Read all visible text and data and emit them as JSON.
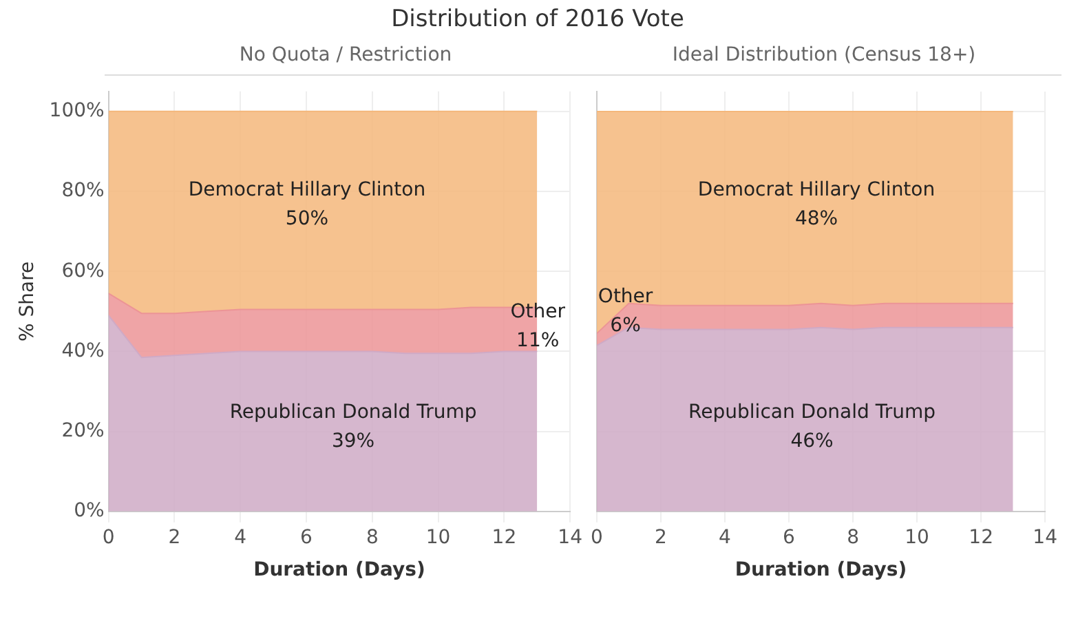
{
  "chart_data": [
    {
      "type": "area",
      "title": "Distribution of 2016 Vote",
      "subtitle": "No Quota / Restriction",
      "xlabel": "Duration (Days)",
      "ylabel": "% Share",
      "stacked": true,
      "x": [
        0,
        1,
        2,
        3,
        4,
        5,
        6,
        7,
        8,
        9,
        10,
        11,
        12,
        13
      ],
      "series": [
        {
          "color": "#cfaac6",
          "values": [
            49,
            38.5,
            39,
            39.5,
            40,
            40,
            40,
            40,
            40,
            39.5,
            39.5,
            39.5,
            40,
            40
          ]
        },
        {
          "color": "#ec9496",
          "values": [
            5.5,
            11,
            10.5,
            10.5,
            10.5,
            10.5,
            10.5,
            10.5,
            10.5,
            11,
            11,
            11.5,
            11,
            11
          ]
        },
        {
          "color": "#f4b77b",
          "values": [
            45.5,
            50.5,
            50.5,
            50,
            49.5,
            49.5,
            49.5,
            49.5,
            49.5,
            49.5,
            49.5,
            49,
            49,
            49
          ]
        }
      ],
      "xlim": [
        0,
        14
      ],
      "xticks": [
        0,
        2,
        4,
        6,
        8,
        10,
        12,
        14
      ],
      "ylim": [
        0,
        105
      ],
      "yticks": [
        {
          "value": 0,
          "label": "0%"
        },
        {
          "value": 20,
          "label": "20%"
        },
        {
          "value": 40,
          "label": "40%"
        },
        {
          "value": 60,
          "label": "60%"
        },
        {
          "value": 80,
          "label": "80%"
        },
        {
          "value": 100,
          "label": "100%"
        }
      ],
      "grid": true,
      "legend": false,
      "annotations": [
        "Democrat Hillary Clinton\n50%",
        "Other\n11%",
        "Republican Donald Trump\n39%"
      ]
    },
    {
      "type": "area",
      "subtitle": "Ideal Distribution (Census 18+)",
      "xlabel": "Duration (Days)",
      "stacked": true,
      "x": [
        0,
        1,
        2,
        3,
        4,
        5,
        6,
        7,
        8,
        9,
        10,
        11,
        12,
        13
      ],
      "series": [
        {
          "color": "#cfaac6",
          "values": [
            41.5,
            46,
            45.5,
            45.5,
            45.5,
            45.5,
            45.5,
            46,
            45.5,
            46,
            46,
            46,
            46,
            46
          ]
        },
        {
          "color": "#ec9496",
          "values": [
            3,
            6,
            6,
            6,
            6,
            6,
            6,
            6,
            6,
            6,
            6,
            6,
            6,
            6
          ]
        },
        {
          "color": "#f4b77b",
          "values": [
            55.5,
            48,
            48.5,
            48.5,
            48.5,
            48.5,
            48.5,
            48,
            48.5,
            48,
            48,
            48,
            48,
            48
          ]
        }
      ],
      "xlim": [
        0,
        14
      ],
      "xticks": [
        0,
        2,
        4,
        6,
        8,
        10,
        12,
        14
      ],
      "ylim": [
        0,
        105
      ],
      "yticks": [
        0,
        20,
        40,
        60,
        80,
        100
      ],
      "grid": true,
      "legend": false,
      "tick_labels": "x",
      "annotations": [
        "Democrat Hillary Clinton\n48%",
        "Other\n6%",
        "Republican Donald Trump\n46%"
      ]
    }
  ]
}
